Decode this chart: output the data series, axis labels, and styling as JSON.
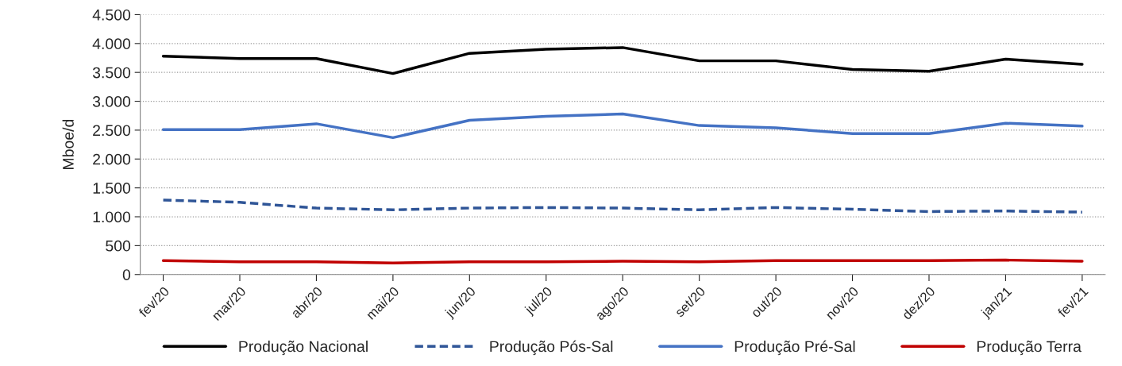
{
  "chart_data": {
    "type": "line",
    "ylabel": "Mboe/d",
    "categories": [
      "fev/20",
      "mar/20",
      "abr/20",
      "mai/20",
      "jun/20",
      "jul/20",
      "ago/20",
      "set/20",
      "out/20",
      "nov/20",
      "dez/20",
      "jan/21",
      "fev/21"
    ],
    "series": [
      {
        "name": "Produção Nacional",
        "color": "#000000",
        "line_style": "solid",
        "values": [
          3780,
          3740,
          3740,
          3480,
          3830,
          3900,
          3930,
          3700,
          3700,
          3550,
          3520,
          3730,
          3640
        ]
      },
      {
        "name": "Produção Pós-Sal",
        "color": "#2f5597",
        "line_style": "dashed",
        "values": [
          1290,
          1250,
          1150,
          1120,
          1150,
          1160,
          1150,
          1120,
          1160,
          1130,
          1090,
          1100,
          1080
        ]
      },
      {
        "name": "Produção Pré-Sal",
        "color": "#4472c4",
        "line_style": "solid",
        "values": [
          2510,
          2510,
          2610,
          2370,
          2670,
          2740,
          2780,
          2580,
          2540,
          2440,
          2440,
          2620,
          2570
        ]
      },
      {
        "name": "Produção Terra",
        "color": "#c00000",
        "line_style": "solid",
        "values": [
          240,
          220,
          220,
          200,
          220,
          220,
          230,
          220,
          240,
          240,
          240,
          250,
          230
        ]
      }
    ],
    "ylim": [
      0,
      4500
    ],
    "yticks": [
      0,
      500,
      {
        "value": 1000,
        "label": "1.000"
      },
      {
        "value": 1500,
        "label": "1.500"
      },
      {
        "value": 2000,
        "label": "2.000"
      },
      {
        "value": 2500,
        "label": "2.500"
      },
      {
        "value": 3000,
        "label": "3.000"
      },
      {
        "value": 3500,
        "label": "3.500"
      },
      {
        "value": 4000,
        "label": "4.000"
      },
      {
        "value": 4500,
        "label": "4.500"
      }
    ],
    "grid": "y",
    "legend": "bottom",
    "marker": "none"
  }
}
